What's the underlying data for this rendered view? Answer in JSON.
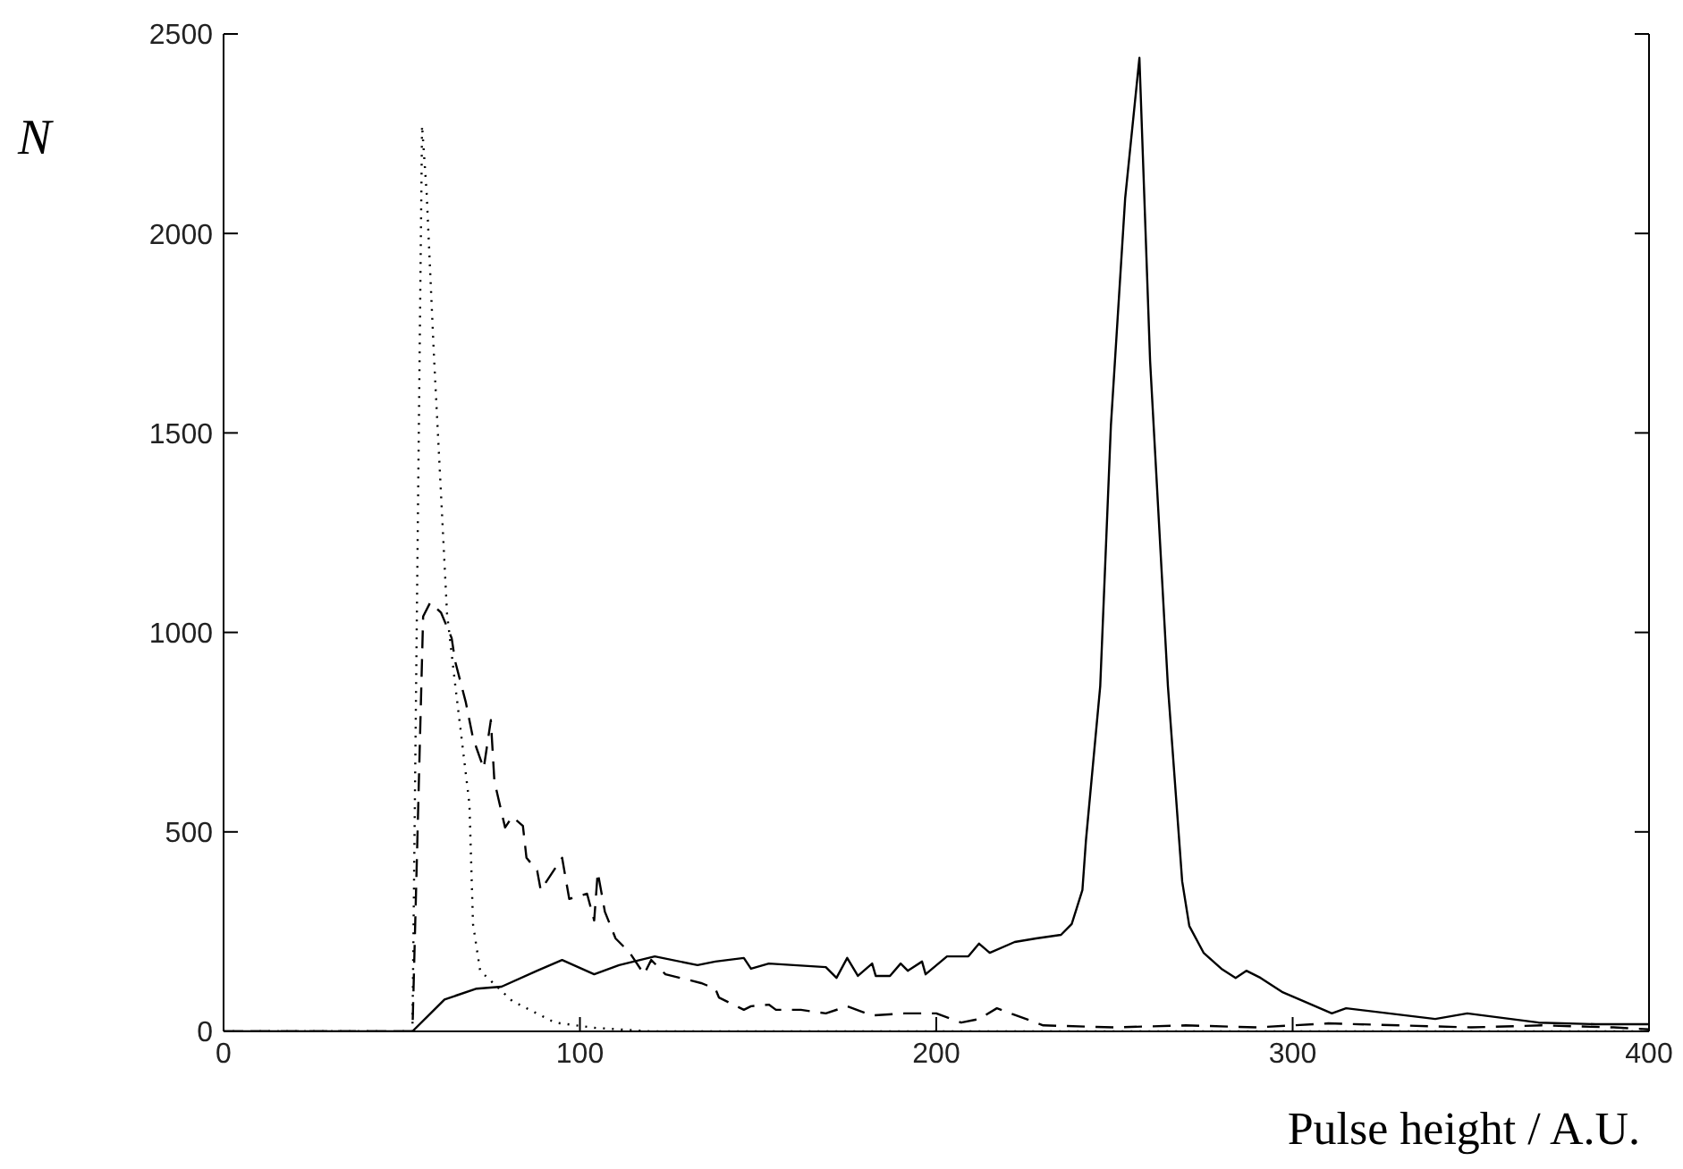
{
  "chart_data": {
    "type": "line",
    "xlabel": "Pulse height / A.U.",
    "ylabel": "N",
    "xlim": [
      0,
      400
    ],
    "ylim": [
      0,
      2500
    ],
    "xticks": [
      0,
      100,
      200,
      300,
      400
    ],
    "yticks": [
      0,
      500,
      1000,
      1500,
      2000,
      2500
    ],
    "marker": "none",
    "series": [
      {
        "color": "#000000",
        "line_style": "solid",
        "x": [
          0,
          52,
          53,
          62,
          71,
          78,
          88,
          95,
          104,
          111,
          121,
          133,
          138,
          146,
          148,
          153,
          169,
          172,
          175,
          178,
          182,
          183,
          187,
          190,
          192,
          196,
          197,
          203,
          209,
          212,
          215,
          222,
          228,
          235,
          238,
          241,
          242,
          246,
          249,
          253,
          257,
          260,
          265,
          269,
          271,
          275,
          280,
          284,
          287,
          291,
          297,
          303,
          311,
          315,
          327,
          340,
          349,
          369,
          385,
          400
        ],
        "values": [
          0,
          0,
          0,
          80,
          107,
          112,
          152,
          179,
          143,
          166,
          188,
          166,
          175,
          184,
          157,
          170,
          161,
          134,
          184,
          139,
          170,
          139,
          139,
          170,
          152,
          175,
          143,
          188,
          188,
          220,
          197,
          224,
          233,
          242,
          269,
          354,
          479,
          865,
          1519,
          2088,
          2440,
          1680,
          865,
          376,
          264,
          197,
          157,
          134,
          152,
          134,
          99,
          76,
          45,
          58,
          45,
          31,
          45,
          22,
          18,
          18
        ]
      },
      {
        "color": "#000000",
        "line_style": "dashed",
        "x": [
          0,
          52,
          53,
          56,
          58,
          61,
          64,
          65,
          68,
          70,
          73,
          75,
          76,
          79,
          81,
          84,
          85,
          88,
          89,
          95,
          97,
          102,
          104,
          105,
          107,
          110,
          114,
          118,
          120,
          124,
          130,
          134,
          138,
          139,
          146,
          148,
          153,
          155,
          162,
          169,
          175,
          182,
          191,
          200,
          207,
          212,
          217,
          230,
          250,
          270,
          290,
          310,
          330,
          350,
          370,
          390,
          400
        ],
        "values": [
          0,
          0,
          0,
          1040,
          1075,
          1050,
          986,
          927,
          824,
          735,
          659,
          780,
          627,
          511,
          538,
          515,
          435,
          403,
          354,
          435,
          332,
          345,
          278,
          399,
          300,
          233,
          197,
          143,
          179,
          143,
          130,
          121,
          107,
          85,
          54,
          63,
          67,
          54,
          54,
          45,
          63,
          40,
          45,
          45,
          22,
          31,
          58,
          15,
          10,
          15,
          10,
          20,
          15,
          10,
          15,
          10,
          5
        ]
      },
      {
        "color": "#000000",
        "line_style": "dotted",
        "x": [
          0,
          52,
          53,
          55.7,
          57,
          59,
          61,
          62.7,
          65,
          69,
          70,
          72,
          81,
          93,
          104,
          120,
          200,
          300,
          400
        ],
        "values": [
          0,
          0,
          0,
          2270,
          2100,
          1700,
          1350,
          1048,
          869,
          569,
          269,
          152,
          76,
          22,
          9,
          0,
          0,
          0,
          0
        ]
      }
    ]
  }
}
